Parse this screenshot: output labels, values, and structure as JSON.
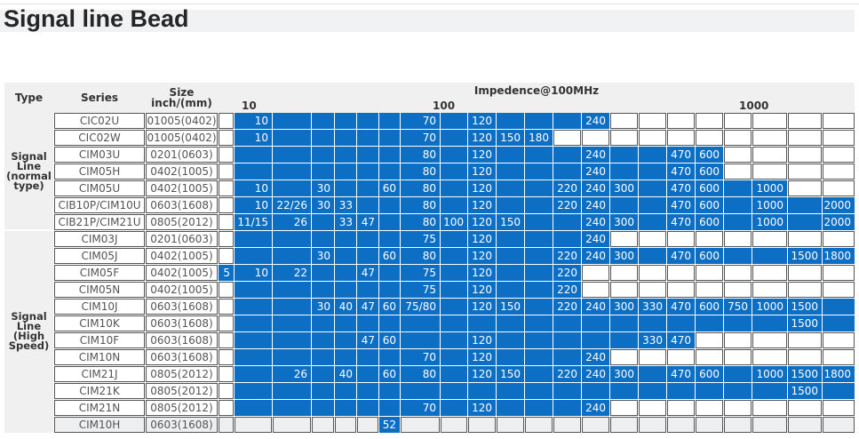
{
  "title": "Signal line Bead",
  "header": {
    "type": "Type",
    "series": "Series",
    "size_line1": "Size",
    "size_line2": "inch/(mm)",
    "impedance": "Impedence@100MHz",
    "scale": [
      "10",
      "100",
      "1000"
    ]
  },
  "groups": [
    {
      "label_lines": [
        "Signal",
        "Line",
        "(normal",
        "type)"
      ]
    },
    {
      "label_lines": [
        "Signal",
        "Line",
        "(High",
        "Speed)"
      ]
    }
  ],
  "colors": {
    "filled": "#0d6fc4",
    "empty": "#ffffff",
    "discontinued": "#eeeff1"
  },
  "rows": [
    {
      "series": "CIC02U",
      "size": "01005(0402)",
      "filled": "0111111111111100000000",
      "values": [
        "",
        "10",
        "",
        "",
        "",
        "",
        "",
        "70",
        "",
        "120",
        "",
        "",
        "",
        "240",
        "",
        "",
        "",
        "",
        "",
        "",
        "",
        ""
      ]
    },
    {
      "series": "CIC02W",
      "size": "01005(0402)",
      "filled": "0111111111110000000000",
      "values": [
        "",
        "10",
        "",
        "",
        "",
        "",
        "",
        "70",
        "",
        "120",
        "150",
        "180",
        "",
        "",
        "",
        "",
        "",
        "",
        "",
        "",
        "",
        ""
      ]
    },
    {
      "series": "CIM03U",
      "size": "0201(0603)",
      "filled": "0111111111111111110000",
      "values": [
        "",
        "",
        "",
        "",
        "",
        "",
        "",
        "80",
        "",
        "120",
        "",
        "",
        "",
        "240",
        "",
        "",
        "470",
        "600",
        "",
        "",
        "",
        ""
      ]
    },
    {
      "series": "CIM05H",
      "size": "0402(1005)",
      "filled": "0111111111111111110000",
      "values": [
        "",
        "",
        "",
        "",
        "",
        "",
        "",
        "80",
        "",
        "120",
        "",
        "",
        "",
        "240",
        "",
        "",
        "470",
        "600",
        "",
        "",
        "",
        ""
      ]
    },
    {
      "series": "CIM05U",
      "size": "0402(1005)",
      "filled": "0111111111111111111100",
      "values": [
        "",
        "10",
        "",
        "30",
        "",
        "",
        "60",
        "80",
        "",
        "120",
        "",
        "",
        "220",
        "240",
        "300",
        "",
        "470",
        "600",
        "",
        "1000",
        "",
        ""
      ]
    },
    {
      "series": "CIB10P/CIM10U",
      "size": "0603(1608)",
      "filled": "0111111111111111111111",
      "values": [
        "",
        "10",
        "22/26",
        "30",
        "33",
        "",
        "",
        "80",
        "",
        "120",
        "",
        "",
        "220",
        "240",
        "",
        "",
        "470",
        "600",
        "",
        "1000",
        "",
        "2000"
      ]
    },
    {
      "series": "CIB21P/CIM21U",
      "size": "0805(2012)",
      "filled": "0111111111111111111111",
      "values": [
        "",
        "11/15",
        "26",
        "",
        "33",
        "47",
        "",
        "80",
        "100",
        "120",
        "150",
        "",
        "",
        "240",
        "300",
        "",
        "470",
        "600",
        "",
        "1000",
        "",
        "2000"
      ]
    },
    {
      "series": "CIM03J",
      "size": "0201(0603)",
      "filled": "0111111111111100000000",
      "values": [
        "",
        "",
        "",
        "",
        "",
        "",
        "",
        "75",
        "",
        "120",
        "",
        "",
        "",
        "240",
        "",
        "",
        "",
        "",
        "",
        "",
        "",
        ""
      ]
    },
    {
      "series": "CIM05J",
      "size": "0402(1005)",
      "filled": "0111111111111111111111",
      "values": [
        "",
        "",
        "",
        "30",
        "",
        "",
        "60",
        "80",
        "",
        "120",
        "",
        "",
        "220",
        "240",
        "300",
        "",
        "470",
        "600",
        "",
        "",
        "1500",
        "1800"
      ]
    },
    {
      "series": "CIM05F",
      "size": "0402(1005)",
      "filled": "1111111111111000000000",
      "values": [
        "5",
        "10",
        "22",
        "",
        "",
        "47",
        "",
        "75",
        "",
        "120",
        "",
        "",
        "220",
        "",
        "",
        "",
        "",
        "",
        "",
        "",
        "",
        ""
      ]
    },
    {
      "series": "CIM05N",
      "size": "0402(1005)",
      "filled": "0111111111111000000000",
      "values": [
        "",
        "",
        "",
        "",
        "",
        "",
        "",
        "75",
        "",
        "120",
        "",
        "",
        "220",
        "",
        "",
        "",
        "",
        "",
        "",
        "",
        "",
        ""
      ]
    },
    {
      "series": "CIM10J",
      "size": "0603(1608)",
      "filled": "0111111111111111111111",
      "values": [
        "",
        "",
        "",
        "30",
        "40",
        "47",
        "60",
        "75/80",
        "",
        "120",
        "150",
        "",
        "220",
        "240",
        "300",
        "330",
        "470",
        "600",
        "750",
        "1000",
        "1500",
        ""
      ]
    },
    {
      "series": "CIM10K",
      "size": "0603(1608)",
      "filled": "0111111111111111111111",
      "values": [
        "",
        "",
        "",
        "",
        "",
        "",
        "",
        "",
        "",
        "",
        "",
        "",
        "",
        "",
        "",
        "",
        "",
        "",
        "",
        "",
        "1500",
        ""
      ]
    },
    {
      "series": "CIM10F",
      "size": "0603(1608)",
      "filled": "0111111111111111100000",
      "values": [
        "",
        "",
        "",
        "",
        "",
        "47",
        "60",
        "",
        "",
        "120",
        "",
        "",
        "",
        "",
        "",
        "330",
        "470",
        "",
        "",
        "",
        "",
        ""
      ]
    },
    {
      "series": "CIM10N",
      "size": "0603(1608)",
      "filled": "0111111111111100000000",
      "values": [
        "",
        "",
        "",
        "",
        "",
        "",
        "",
        "70",
        "",
        "120",
        "",
        "",
        "",
        "240",
        "",
        "",
        "",
        "",
        "",
        "",
        "",
        ""
      ]
    },
    {
      "series": "CIM21J",
      "size": "0805(2012)",
      "filled": "0111111111111111111111",
      "values": [
        "",
        "",
        "26",
        "",
        "40",
        "",
        "60",
        "80",
        "",
        "120",
        "150",
        "",
        "220",
        "240",
        "300",
        "",
        "470",
        "600",
        "",
        "1000",
        "1500",
        "1800"
      ]
    },
    {
      "series": "CIM21K",
      "size": "0805(2012)",
      "filled": "0111111111111111111111",
      "values": [
        "",
        "",
        "",
        "",
        "",
        "",
        "",
        "",
        "",
        "",
        "",
        "",
        "",
        "",
        "",
        "",
        "",
        "",
        "",
        "",
        "1500",
        ""
      ]
    },
    {
      "series": "CIM21N",
      "size": "0805(2012)",
      "filled": "0111111111111100000000",
      "values": [
        "",
        "",
        "",
        "",
        "",
        "",
        "",
        "70",
        "",
        "120",
        "",
        "",
        "",
        "240",
        "",
        "",
        "",
        "",
        "",
        "",
        "",
        ""
      ]
    },
    {
      "series": "CIM10H",
      "size": "0603(1608)",
      "discontinued": true,
      "filled": "0000001000000000000000",
      "values": [
        "",
        "",
        "",
        "",
        "",
        "",
        "52",
        "",
        "",
        "",
        "",
        "",
        "",
        "",
        "",
        "",
        "",
        "",
        "",
        "",
        "",
        ""
      ]
    }
  ]
}
